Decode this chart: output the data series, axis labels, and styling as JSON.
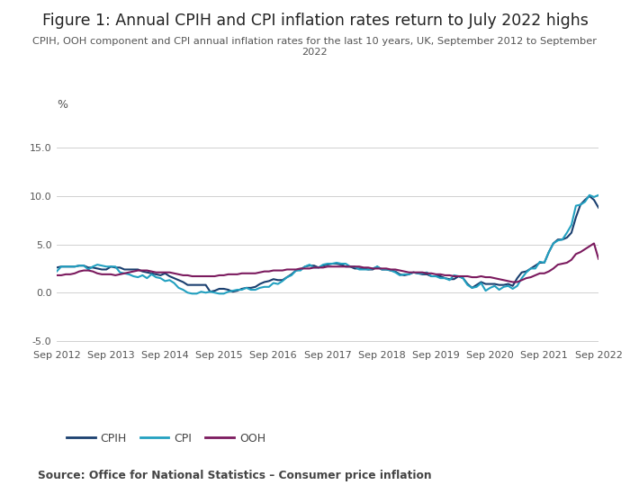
{
  "title": "Figure 1: Annual CPIH and CPI inflation rates return to July 2022 highs",
  "subtitle": "CPIH, OOH component and CPI annual inflation rates for the last 10 years, UK, September 2012 to September\n2022",
  "source": "Source: Office for National Statistics – Consumer price inflation",
  "ylabel": "%",
  "ylim": [
    -5.5,
    17.0
  ],
  "yticks": [
    -5.0,
    0.0,
    5.0,
    10.0,
    15.0
  ],
  "colors": {
    "CPIH": "#1a3f6f",
    "CPI": "#22a0c0",
    "OOH": "#7b1a5e"
  },
  "background": "#ffffff",
  "grid_color": "#d0d0d0",
  "CPIH": [
    2.6,
    2.7,
    2.7,
    2.7,
    2.7,
    2.8,
    2.8,
    2.6,
    2.6,
    2.5,
    2.4,
    2.4,
    2.7,
    2.6,
    2.6,
    2.4,
    2.4,
    2.4,
    2.4,
    2.2,
    2.1,
    2.0,
    1.9,
    1.8,
    2.0,
    1.7,
    1.5,
    1.3,
    1.1,
    0.8,
    0.8,
    0.8,
    0.8,
    0.8,
    0.1,
    0.2,
    0.4,
    0.4,
    0.3,
    0.1,
    0.2,
    0.4,
    0.5,
    0.5,
    0.6,
    0.9,
    1.1,
    1.2,
    1.4,
    1.3,
    1.3,
    1.6,
    1.9,
    2.3,
    2.4,
    2.7,
    2.8,
    2.8,
    2.6,
    2.8,
    2.9,
    3.0,
    3.0,
    2.9,
    2.7,
    2.7,
    2.5,
    2.5,
    2.5,
    2.4,
    2.4,
    2.7,
    2.4,
    2.4,
    2.3,
    2.2,
    1.9,
    1.8,
    1.9,
    2.1,
    2.0,
    1.9,
    1.9,
    1.7,
    1.7,
    1.7,
    1.5,
    1.4,
    1.4,
    1.7,
    1.5,
    0.9,
    0.5,
    0.8,
    1.1,
    0.9,
    0.9,
    0.9,
    0.8,
    0.8,
    0.9,
    0.7,
    1.5,
    2.1,
    2.2,
    2.5,
    2.8,
    3.1,
    3.1,
    4.2,
    5.1,
    5.5,
    5.5,
    5.7,
    6.2,
    7.8,
    9.1,
    9.6,
    10.0,
    9.6,
    8.8
  ],
  "CPI": [
    2.2,
    2.7,
    2.7,
    2.7,
    2.7,
    2.8,
    2.8,
    2.4,
    2.7,
    2.9,
    2.8,
    2.7,
    2.7,
    2.7,
    2.1,
    2.0,
    1.9,
    1.7,
    1.6,
    1.8,
    1.5,
    1.9,
    1.6,
    1.5,
    1.2,
    1.3,
    1.0,
    0.5,
    0.3,
    0.0,
    -0.1,
    -0.1,
    0.1,
    0.0,
    0.1,
    0.0,
    -0.1,
    -0.1,
    0.1,
    0.2,
    0.3,
    0.3,
    0.5,
    0.3,
    0.3,
    0.5,
    0.6,
    0.6,
    1.0,
    0.9,
    1.2,
    1.6,
    1.8,
    2.3,
    2.3,
    2.7,
    2.9,
    2.6,
    2.6,
    2.9,
    3.0,
    3.0,
    3.1,
    3.0,
    3.0,
    2.7,
    2.7,
    2.4,
    2.4,
    2.4,
    2.5,
    2.7,
    2.4,
    2.4,
    2.3,
    2.1,
    1.8,
    1.9,
    1.9,
    2.1,
    2.0,
    2.0,
    2.1,
    1.7,
    1.7,
    1.5,
    1.5,
    1.3,
    1.8,
    1.7,
    1.5,
    0.8,
    0.5,
    0.6,
    1.0,
    0.2,
    0.5,
    0.7,
    0.3,
    0.6,
    0.7,
    0.4,
    0.7,
    1.5,
    2.1,
    2.5,
    2.5,
    3.2,
    3.1,
    4.2,
    5.1,
    5.4,
    5.5,
    6.2,
    7.0,
    9.0,
    9.1,
    9.4,
    10.1,
    9.9,
    10.1
  ],
  "OOH": [
    1.8,
    1.8,
    1.9,
    1.9,
    2.0,
    2.2,
    2.3,
    2.3,
    2.2,
    2.0,
    1.9,
    1.9,
    1.9,
    1.8,
    1.9,
    2.0,
    2.1,
    2.2,
    2.3,
    2.3,
    2.3,
    2.2,
    2.1,
    2.1,
    2.1,
    2.1,
    2.0,
    1.9,
    1.8,
    1.8,
    1.7,
    1.7,
    1.7,
    1.7,
    1.7,
    1.7,
    1.8,
    1.8,
    1.9,
    1.9,
    1.9,
    2.0,
    2.0,
    2.0,
    2.0,
    2.1,
    2.2,
    2.2,
    2.3,
    2.3,
    2.3,
    2.4,
    2.4,
    2.4,
    2.5,
    2.5,
    2.5,
    2.6,
    2.6,
    2.6,
    2.7,
    2.7,
    2.7,
    2.7,
    2.7,
    2.7,
    2.7,
    2.7,
    2.6,
    2.6,
    2.5,
    2.5,
    2.5,
    2.5,
    2.4,
    2.4,
    2.3,
    2.2,
    2.1,
    2.1,
    2.1,
    2.1,
    2.0,
    2.0,
    1.9,
    1.9,
    1.8,
    1.8,
    1.7,
    1.7,
    1.7,
    1.7,
    1.6,
    1.6,
    1.7,
    1.6,
    1.6,
    1.5,
    1.4,
    1.3,
    1.2,
    1.1,
    1.1,
    1.3,
    1.5,
    1.6,
    1.8,
    2.0,
    2.0,
    2.2,
    2.5,
    2.9,
    3.0,
    3.1,
    3.4,
    4.0,
    4.2,
    4.5,
    4.8,
    5.1,
    3.5
  ],
  "xtick_positions": [
    0,
    12,
    24,
    36,
    48,
    60,
    72,
    84,
    96,
    108,
    120
  ],
  "xtick_labels": [
    "Sep 2012",
    "Sep 2013",
    "Sep 2014",
    "Sep 2015",
    "Sep 2016",
    "Sep 2017",
    "Sep 2018",
    "Sep 2019",
    "Sep 2020",
    "Sep 2021",
    "Sep 2022"
  ]
}
